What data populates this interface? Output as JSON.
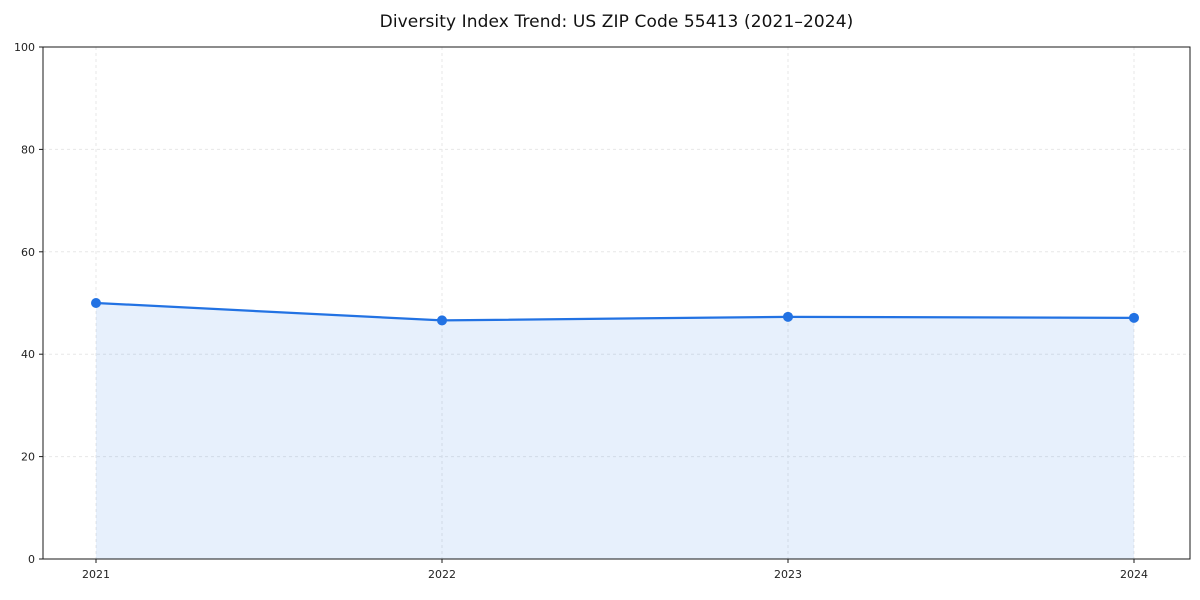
{
  "chart_data": {
    "type": "area",
    "title": "Diversity Index Trend: US ZIP Code 55413 (2021–2024)",
    "xlabel": "",
    "ylabel": "",
    "x": [
      2021,
      2022,
      2023,
      2024
    ],
    "categories": [
      "2021",
      "2022",
      "2023",
      "2024"
    ],
    "series": [
      {
        "name": "Diversity Index",
        "values": [
          50.0,
          46.6,
          47.3,
          47.1
        ]
      }
    ],
    "ylim": [
      0,
      100
    ],
    "yticks": [
      0,
      20,
      40,
      60,
      80,
      100
    ],
    "xticks": [
      "2021",
      "2022",
      "2023",
      "2024"
    ],
    "grid": true,
    "legend_position": "none",
    "line_color": "#2272e3",
    "marker_color": "#2272e3",
    "fill_color": "rgba(34, 114, 227, 0.11)",
    "spine_color": "#1a1a1a",
    "grid_color": "#e7e7e7",
    "background_color": "#ffffff"
  }
}
